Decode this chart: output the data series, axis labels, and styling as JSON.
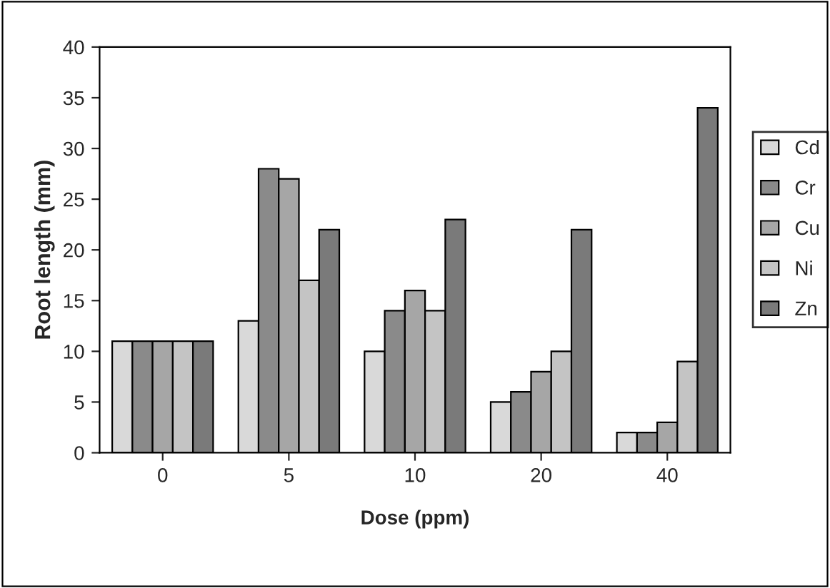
{
  "chart_data": {
    "type": "bar",
    "xlabel": "Dose (ppm)",
    "ylabel": "Root length (mm)",
    "categories": [
      "0",
      "5",
      "10",
      "20",
      "40"
    ],
    "series": [
      {
        "name": "Cd",
        "color": "#d9d9d9",
        "values": [
          11,
          13,
          10,
          5,
          2
        ]
      },
      {
        "name": "Cr",
        "color": "#8a8a8a",
        "values": [
          11,
          28,
          14,
          6,
          2
        ]
      },
      {
        "name": "Cu",
        "color": "#a6a6a6",
        "values": [
          11,
          27,
          16,
          8,
          3
        ]
      },
      {
        "name": "Ni",
        "color": "#c4c4c4",
        "values": [
          11,
          17,
          14,
          10,
          9
        ]
      },
      {
        "name": "Zn",
        "color": "#7a7a7a",
        "values": [
          11,
          22,
          23,
          22,
          34
        ]
      }
    ],
    "ylim": [
      0,
      40
    ],
    "yticks": [
      0,
      5,
      10,
      15,
      20,
      25,
      30,
      35,
      40
    ],
    "grid": false,
    "legend": "right"
  }
}
